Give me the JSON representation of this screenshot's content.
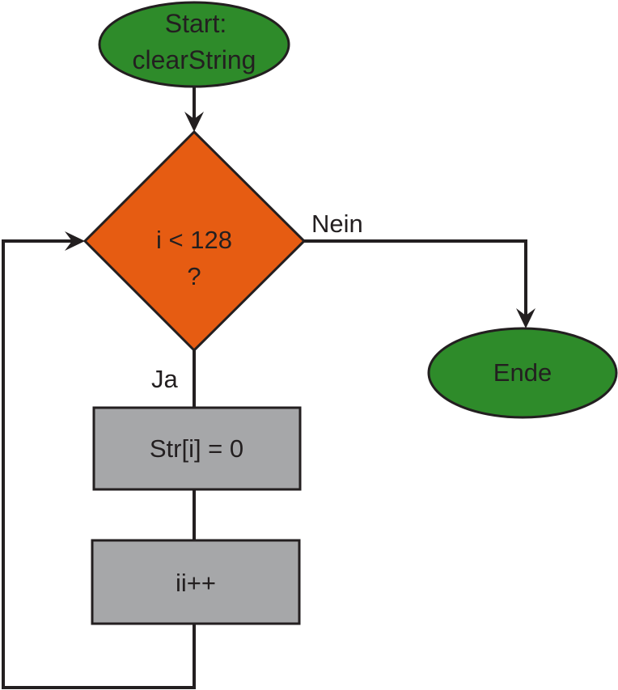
{
  "nodes": {
    "start": {
      "line1": "Start:",
      "line2": "clearString",
      "color": "#2e8b2a"
    },
    "decision": {
      "line1": "i < 128",
      "line2": "?",
      "color": "#e65c12"
    },
    "process1": {
      "label": "Str[i] = 0",
      "color": "#a6a7a9"
    },
    "process2": {
      "label": "ii++",
      "color": "#a6a7a9"
    },
    "end": {
      "label": "Ende",
      "color": "#2e8b2a"
    }
  },
  "edges": {
    "no_label": "Nein",
    "yes_label": "Ja"
  }
}
